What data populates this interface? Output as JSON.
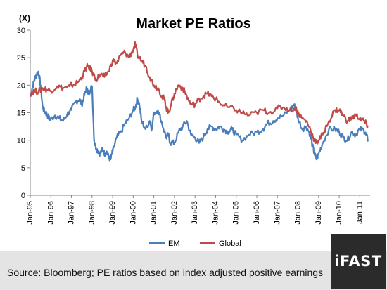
{
  "colors": {
    "em": "#4a7ebb",
    "global": "#be4b48",
    "axis": "#868686",
    "footer_bg": "#e4e4e4",
    "logo_bg": "#2b2b2b"
  },
  "footer": {
    "source": "Source: Bloomberg; PE ratios based on index adjusted positive earnings"
  },
  "logo": {
    "text": "iFAST"
  },
  "chart_data": {
    "type": "line",
    "title": "Market PE Ratios",
    "ylabel": "(X)",
    "xlabel": "",
    "ylim": [
      0,
      30
    ],
    "yticks": [
      "0",
      "5",
      "10",
      "15",
      "20",
      "25",
      "30"
    ],
    "categories": [
      "Jan-95",
      "Jan-96",
      "Jan-97",
      "Jan-98",
      "Jan-99",
      "Jan-00",
      "Jan-01",
      "Jan-02",
      "Jan-03",
      "Jan-04",
      "Jan-05",
      "Jan-06",
      "Jan-07",
      "Jan-08",
      "Jan-09",
      "Jan-10",
      "Jan-11"
    ],
    "grid": false,
    "legend": "bottom",
    "series": [
      {
        "name": "EM",
        "color": "#4a7ebb",
        "x": [
          1995.0,
          1995.1,
          1995.2,
          1995.3,
          1995.4,
          1995.5,
          1995.6,
          1995.7,
          1995.8,
          1995.9,
          1996.0,
          1996.2,
          1996.4,
          1996.6,
          1996.8,
          1997.0,
          1997.2,
          1997.4,
          1997.5,
          1997.6,
          1997.7,
          1997.75,
          1997.8,
          1997.9,
          1998.0,
          1998.1,
          1998.2,
          1998.3,
          1998.4,
          1998.5,
          1998.6,
          1998.7,
          1998.8,
          1998.9,
          1999.0,
          1999.2,
          1999.4,
          1999.6,
          1999.8,
          2000.0,
          2000.1,
          2000.2,
          2000.3,
          2000.4,
          2000.6,
          2000.8,
          2000.9,
          2001.0,
          2001.2,
          2001.4,
          2001.6,
          2001.7,
          2001.8,
          2002.0,
          2002.2,
          2002.4,
          2002.6,
          2002.8,
          2003.0,
          2003.2,
          2003.4,
          2003.6,
          2003.8,
          2004.0,
          2004.2,
          2004.4,
          2004.6,
          2004.8,
          2005.0,
          2005.3,
          2005.6,
          2006.0,
          2006.3,
          2006.5,
          2006.8,
          2007.0,
          2007.3,
          2007.6,
          2007.8,
          2007.9,
          2008.0,
          2008.2,
          2008.4,
          2008.6,
          2008.7,
          2008.8,
          2008.9,
          2009.0,
          2009.2,
          2009.5,
          2009.8,
          2010.0,
          2010.2,
          2010.4,
          2010.6,
          2010.8,
          2011.0,
          2011.2,
          2011.3,
          2011.4
        ],
        "values": [
          18.0,
          19.5,
          21.0,
          22.0,
          22.5,
          20.0,
          16.0,
          15.2,
          14.8,
          14.0,
          13.8,
          14.5,
          14.0,
          13.5,
          14.8,
          15.5,
          17.0,
          17.5,
          16.5,
          17.8,
          19.0,
          19.5,
          18.5,
          19.0,
          19.8,
          10.0,
          8.5,
          8.0,
          7.5,
          8.5,
          7.5,
          8.0,
          7.0,
          6.5,
          8.0,
          10.5,
          11.5,
          13.0,
          14.0,
          15.5,
          16.0,
          17.5,
          16.5,
          13.5,
          12.0,
          13.5,
          12.0,
          15.0,
          15.5,
          13.0,
          10.5,
          11.0,
          9.5,
          9.5,
          11.5,
          12.5,
          13.5,
          11.0,
          10.5,
          9.5,
          10.5,
          12.0,
          12.5,
          12.0,
          12.5,
          12.0,
          11.5,
          12.0,
          11.0,
          10.0,
          11.0,
          11.5,
          12.0,
          13.0,
          13.5,
          14.0,
          14.5,
          15.5,
          16.5,
          15.5,
          14.0,
          12.0,
          12.5,
          11.0,
          9.0,
          7.5,
          6.5,
          7.5,
          9.5,
          12.0,
          12.0,
          11.5,
          10.5,
          10.0,
          11.5,
          11.0,
          12.0,
          11.8,
          11.0,
          10.0
        ]
      },
      {
        "name": "Global",
        "color": "#be4b48",
        "x": [
          1995.0,
          1995.2,
          1995.4,
          1995.6,
          1995.8,
          1996.0,
          1996.3,
          1996.6,
          1996.9,
          1997.0,
          1997.3,
          1997.5,
          1997.7,
          1997.8,
          1998.0,
          1998.2,
          1998.4,
          1998.6,
          1998.8,
          1999.0,
          1999.2,
          1999.4,
          1999.6,
          1999.8,
          2000.0,
          2000.1,
          2000.2,
          2000.4,
          2000.6,
          2000.8,
          2001.0,
          2001.2,
          2001.4,
          2001.5,
          2001.6,
          2001.7,
          2001.8,
          2002.0,
          2002.2,
          2002.4,
          2002.6,
          2002.8,
          2003.0,
          2003.2,
          2003.4,
          2003.6,
          2003.8,
          2004.0,
          2004.3,
          2004.6,
          2005.0,
          2005.3,
          2005.6,
          2006.0,
          2006.3,
          2006.6,
          2007.0,
          2007.3,
          2007.6,
          2007.9,
          2008.0,
          2008.2,
          2008.4,
          2008.6,
          2008.8,
          2008.9,
          2009.0,
          2009.2,
          2009.5,
          2009.8,
          2010.0,
          2010.2,
          2010.4,
          2010.6,
          2010.8,
          2011.0,
          2011.2,
          2011.3,
          2011.4
        ],
        "values": [
          18.5,
          19.0,
          18.8,
          19.5,
          19.2,
          19.0,
          19.8,
          19.5,
          19.8,
          20.0,
          20.5,
          21.5,
          23.0,
          23.5,
          22.5,
          21.0,
          22.0,
          21.5,
          22.5,
          24.5,
          24.0,
          25.5,
          26.0,
          25.0,
          26.5,
          27.5,
          25.5,
          24.5,
          23.5,
          21.5,
          20.0,
          19.5,
          18.0,
          17.5,
          16.0,
          15.0,
          16.0,
          18.5,
          20.0,
          19.5,
          18.0,
          16.5,
          16.5,
          17.5,
          18.0,
          18.5,
          18.0,
          17.5,
          16.5,
          16.0,
          15.5,
          15.0,
          14.5,
          15.0,
          15.5,
          15.0,
          15.8,
          16.0,
          15.5,
          15.8,
          15.0,
          14.0,
          13.5,
          12.0,
          10.0,
          9.5,
          10.0,
          11.0,
          13.5,
          15.5,
          15.5,
          14.5,
          13.5,
          14.0,
          14.5,
          14.0,
          13.5,
          13.0,
          12.5
        ]
      }
    ]
  }
}
